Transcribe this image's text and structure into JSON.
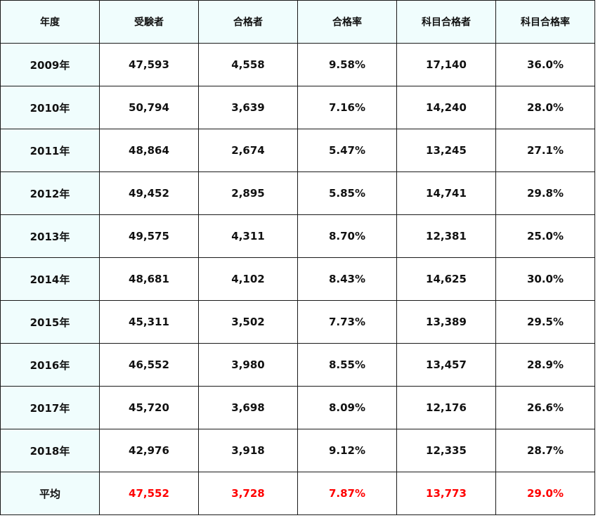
{
  "headers": [
    "年度",
    "受験者",
    "合格者",
    "合格率",
    "科目合格者",
    "科目合格率"
  ],
  "rows": [
    [
      "2009年",
      "47,593",
      "4,558",
      "9.58%",
      "17,140",
      "36.0%"
    ],
    [
      "2010年",
      "50,794",
      "3,639",
      "7.16%",
      "14,240",
      "28.0%"
    ],
    [
      "2011年",
      "48,864",
      "2,674",
      "5.47%",
      "13,245",
      "27.1%"
    ],
    [
      "2012年",
      "49,452",
      "2,895",
      "5.85%",
      "14,741",
      "29.8%"
    ],
    [
      "2013年",
      "49,575",
      "4,311",
      "8.70%",
      "12,381",
      "25.0%"
    ],
    [
      "2014年",
      "48,681",
      "4,102",
      "8.43%",
      "14,625",
      "30.0%"
    ],
    [
      "2015年",
      "45,311",
      "3,502",
      "7.73%",
      "13,389",
      "29.5%"
    ],
    [
      "2016年",
      "46,552",
      "3,980",
      "8.55%",
      "13,457",
      "28.9%"
    ],
    [
      "2017年",
      "45,720",
      "3,698",
      "8.09%",
      "12,176",
      "26.6%"
    ],
    [
      "2018年",
      "42,976",
      "3,918",
      "9.12%",
      "12,335",
      "28.7%"
    ]
  ],
  "average": [
    "平均",
    "47,552",
    "3,728",
    "7.87%",
    "13,773",
    "29.0%"
  ],
  "colors": {
    "header_bg": "#f0fdfd",
    "border": "#1a1a1a",
    "average_value": "#ff0000"
  }
}
